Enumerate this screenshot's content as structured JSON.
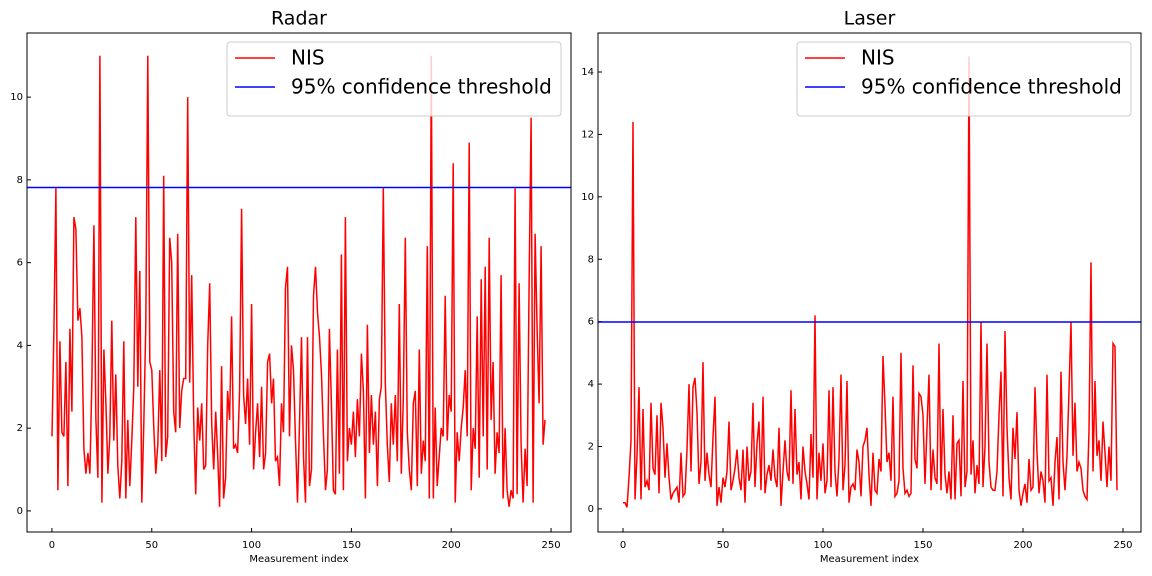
{
  "chart_data": [
    {
      "type": "line",
      "title": "Radar",
      "xlabel": "Measurement index",
      "xlim": [
        -12.5,
        260
      ],
      "xticks": [
        0,
        50,
        100,
        150,
        200,
        250
      ],
      "ylim": [
        -0.51,
        11.55
      ],
      "yticks": [
        0,
        2,
        4,
        6,
        8,
        10
      ],
      "legend": "upper right",
      "series": [
        {
          "name": "NIS",
          "color": "#ff0000",
          "values": [
            1.8,
            4.5,
            7.8,
            0.5,
            4.1,
            1.9,
            1.8,
            3.6,
            0.6,
            4.4,
            2.4,
            7.1,
            6.8,
            4.6,
            4.9,
            4.2,
            1.5,
            0.9,
            1.4,
            0.9,
            3.2,
            6.9,
            2.2,
            0.8,
            11.0,
            0.2,
            3.9,
            2.6,
            0.9,
            1.8,
            4.6,
            1.7,
            3.3,
            1.1,
            0.3,
            1.2,
            4.1,
            0.3,
            2.2,
            0.6,
            1.7,
            3.0,
            7.1,
            3.0,
            5.8,
            0.2,
            2.1,
            4.5,
            11.0,
            3.6,
            3.4,
            2.0,
            0.9,
            1.6,
            3.4,
            1.2,
            8.1,
            1.3,
            1.8,
            6.6,
            6.0,
            2.4,
            1.9,
            6.7,
            2.0,
            2.9,
            3.2,
            3.2,
            10.0,
            3.1,
            5.7,
            2.2,
            0.4,
            2.5,
            1.7,
            2.6,
            1.0,
            1.1,
            4.0,
            5.5,
            2.1,
            1.0,
            2.4,
            1.4,
            0.1,
            3.5,
            0.3,
            0.8,
            2.9,
            2.2,
            4.7,
            1.5,
            1.6,
            1.4,
            2.9,
            7.3,
            2.8,
            2.1,
            3.2,
            1.6,
            5.0,
            1.0,
            1.9,
            2.6,
            1.3,
            3.0,
            1.0,
            1.4,
            3.6,
            3.8,
            2.6,
            3.2,
            1.2,
            1.3,
            0.6,
            2.6,
            1.9,
            5.4,
            5.9,
            1.8,
            4.0,
            3.4,
            1.7,
            0.2,
            2.1,
            4.2,
            1.3,
            0.2,
            4.2,
            0.6,
            1.0,
            5.2,
            5.9,
            4.8,
            4.2,
            3.3,
            1.8,
            0.5,
            1.0,
            4.4,
            2.6,
            0.5,
            0.4,
            3.9,
            0.9,
            6.2,
            0.5,
            7.1,
            1.2,
            2.0,
            1.6,
            2.4,
            1.3,
            2.7,
            1.8,
            3.8,
            2.9,
            0.3,
            4.5,
            1.4,
            2.8,
            1.6,
            2.4,
            0.6,
            2.7,
            3.0,
            7.8,
            3.1,
            1.6,
            0.7,
            2.6,
            1.6,
            2.8,
            1.2,
            5.0,
            0.9,
            2.7,
            6.6,
            1.9,
            1.0,
            0.5,
            2.6,
            2.9,
            0.6,
            3.9,
            0.9,
            1.7,
            1.2,
            6.4,
            0.3,
            11.0,
            0.3,
            2.5,
            0.6,
            1.3,
            2.0,
            1.8,
            5.2,
            1.7,
            2.8,
            2.4,
            8.4,
            0.2,
            1.9,
            1.2,
            2.0,
            2.5,
            3.4,
            1.8,
            8.9,
            0.5,
            2.0,
            1.5,
            4.7,
            0.8,
            5.6,
            1.8,
            5.9,
            1.0,
            6.6,
            2.2,
            3.6,
            0.9,
            1.9,
            1.4,
            5.7,
            0.3,
            2.0,
            0.5,
            0.1,
            0.5,
            0.3,
            7.8,
            0.4,
            5.5,
            1.6,
            0.2,
            1.5,
            0.6,
            5.5,
            9.5,
            0.2,
            6.7,
            4.4,
            2.6,
            6.4,
            1.6,
            2.2
          ]
        }
      ],
      "threshold": {
        "name": "95% confidence threshold",
        "color": "#0000ff",
        "value": 7.815
      }
    },
    {
      "type": "line",
      "title": "Laser",
      "xlabel": "Measurement index",
      "xlim": [
        -12.5,
        259
      ],
      "xticks": [
        0,
        50,
        100,
        150,
        200,
        250
      ],
      "ylim": [
        -0.74,
        15.25
      ],
      "yticks": [
        0,
        2,
        4,
        6,
        8,
        10,
        12,
        14
      ],
      "legend": "upper right",
      "series": [
        {
          "name": "NIS",
          "color": "#ff0000",
          "values": [
            0.2,
            0.2,
            0.05,
            1.0,
            2.2,
            12.4,
            0.3,
            1.7,
            3.9,
            0.3,
            3.2,
            0.7,
            0.9,
            0.6,
            3.4,
            1.3,
            1.1,
            3.0,
            0.5,
            3.4,
            2.6,
            1.0,
            2.1,
            1.0,
            0.3,
            0.5,
            0.6,
            0.7,
            0.2,
            1.8,
            0.4,
            0.5,
            1.9,
            4.0,
            1.2,
            3.9,
            4.2,
            3.1,
            0.8,
            1.5,
            4.7,
            0.9,
            1.8,
            1.1,
            0.7,
            2.3,
            3.6,
            0.1,
            0.7,
            0.2,
            1.0,
            0.7,
            1.2,
            2.8,
            0.6,
            0.9,
            1.3,
            1.9,
            1.0,
            0.6,
            1.9,
            0.2,
            2.0,
            0.9,
            1.2,
            3.4,
            0.7,
            2.1,
            2.8,
            0.6,
            3.6,
            0.5,
            1.1,
            1.4,
            0.9,
            1.9,
            1.0,
            0.7,
            2.6,
            0.1,
            1.2,
            2.2,
            1.2,
            0.9,
            3.8,
            0.8,
            3.2,
            1.1,
            1.5,
            0.3,
            2.0,
            1.2,
            0.8,
            0.3,
            2.4,
            1.0,
            6.2,
            0.3,
            1.8,
            0.9,
            2.1,
            0.5,
            0.9,
            3.8,
            0.7,
            3.9,
            1.2,
            0.4,
            1.6,
            4.3,
            0.6,
            1.4,
            4.1,
            0.2,
            0.7,
            0.8,
            0.6,
            1.9,
            1.5,
            0.4,
            2.0,
            2.2,
            2.6,
            1.1,
            0.1,
            1.8,
            0.6,
            0.5,
            1.6,
            1.2,
            4.9,
            3.3,
            1.5,
            1.8,
            0.9,
            3.6,
            0.4,
            0.5,
            0.9,
            5.0,
            1.3,
            0.5,
            0.6,
            0.4,
            0.5,
            4.6,
            1.6,
            1.3,
            3.7,
            3.6,
            3.0,
            0.8,
            2.6,
            4.3,
            0.6,
            1.9,
            1.0,
            0.8,
            5.3,
            0.6,
            3.2,
            1.1,
            0.5,
            1.2,
            0.3,
            3.0,
            0.3,
            2.1,
            2.2,
            0.4,
            4.1,
            0.7,
            1.2,
            14.5,
            1.1,
            2.2,
            0.5,
            1.4,
            0.8,
            6.0,
            0.7,
            2.0,
            5.3,
            1.5,
            0.7,
            0.6,
            0.6,
            1.2,
            3.0,
            4.4,
            0.4,
            5.7,
            2.6,
            1.0,
            0.3,
            2.6,
            1.6,
            3.1,
            0.6,
            0.1,
            0.5,
            0.8,
            0.2,
            1.6,
            0.6,
            0.7,
            3.9,
            1.8,
            0.5,
            1.2,
            0.9,
            0.2,
            4.3,
            0.9,
            1.0,
            0.1,
            1.5,
            2.3,
            0.3,
            4.4,
            1.5,
            0.6,
            1.7,
            3.8,
            6.0,
            1.7,
            3.4,
            1.2,
            1.5,
            1.3,
            0.6,
            0.4,
            0.3,
            2.5,
            7.9,
            1.2,
            4.1,
            1.7,
            2.2,
            0.9,
            2.8,
            1.8,
            0.7,
            2.0,
            0.9,
            5.3,
            5.2,
            0.6
          ]
        }
      ],
      "threshold": {
        "name": "95% confidence threshold",
        "color": "#0000ff",
        "value": 5.991
      }
    }
  ]
}
